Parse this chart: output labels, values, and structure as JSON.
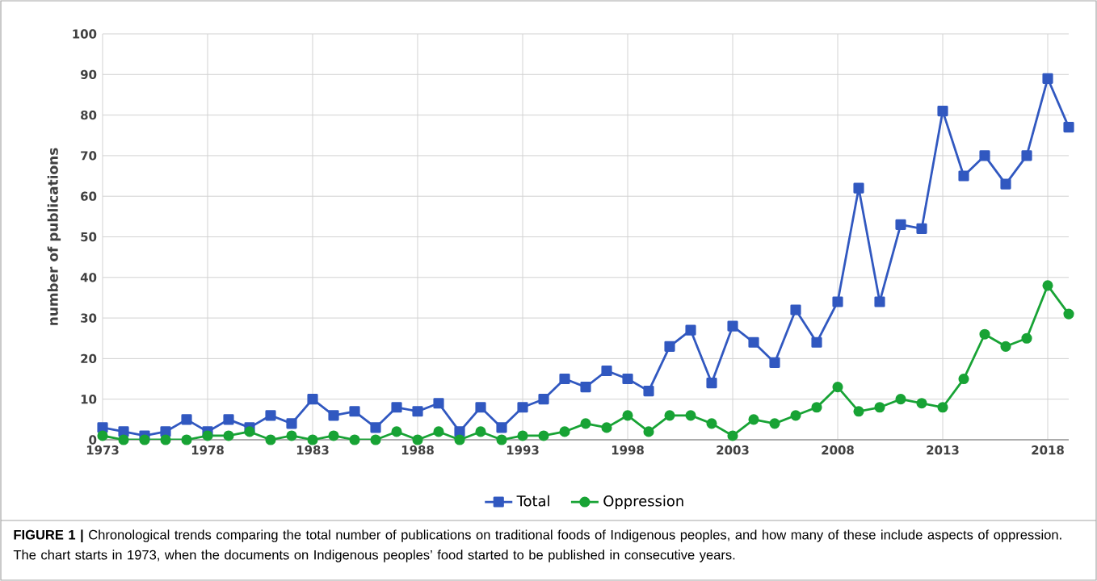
{
  "chart_data": {
    "type": "line",
    "ylabel": "number of publications",
    "x": [
      1973,
      1974,
      1975,
      1976,
      1977,
      1978,
      1979,
      1980,
      1981,
      1982,
      1983,
      1984,
      1985,
      1986,
      1987,
      1988,
      1989,
      1990,
      1991,
      1992,
      1993,
      1994,
      1995,
      1996,
      1997,
      1998,
      1999,
      2000,
      2001,
      2002,
      2003,
      2004,
      2005,
      2006,
      2007,
      2008,
      2009,
      2010,
      2011,
      2012,
      2013,
      2014,
      2015,
      2016,
      2017,
      2018,
      2019
    ],
    "series": [
      {
        "name": "Total",
        "color": "#3158c0",
        "marker": "square",
        "values": [
          3,
          2,
          1,
          2,
          5,
          2,
          5,
          3,
          6,
          4,
          10,
          6,
          7,
          3,
          8,
          7,
          9,
          2,
          8,
          3,
          8,
          10,
          15,
          13,
          17,
          15,
          12,
          23,
          27,
          14,
          28,
          24,
          19,
          32,
          24,
          34,
          62,
          34,
          53,
          52,
          81,
          65,
          70,
          63,
          70,
          89,
          77
        ]
      },
      {
        "name": "Oppression",
        "color": "#18a335",
        "marker": "circle",
        "values": [
          1,
          0,
          0,
          0,
          0,
          1,
          1,
          2,
          0,
          1,
          0,
          1,
          0,
          0,
          2,
          0,
          2,
          0,
          2,
          0,
          1,
          1,
          2,
          4,
          3,
          6,
          2,
          6,
          6,
          4,
          1,
          5,
          4,
          6,
          8,
          13,
          7,
          8,
          10,
          9,
          8,
          15,
          26,
          23,
          25,
          38,
          31
        ]
      }
    ],
    "xlim": [
      1973,
      2019
    ],
    "xticks": [
      1973,
      1978,
      1983,
      1988,
      1993,
      1998,
      2003,
      2008,
      2013,
      2018
    ],
    "ylim": [
      0,
      100
    ],
    "yticks": [
      0,
      10,
      20,
      30,
      40,
      50,
      60,
      70,
      80,
      90,
      100
    ],
    "grid": true,
    "legend": "bottom",
    "line_style": "solid",
    "annotations": [
      "**FIGURE 1 |** Chronological trends comparing the total number of publications on traditional foods of Indigenous peoples, and how many of these include aspects of oppression. The chart starts in 1973, when the documents on Indigenous peoples’ food started to be published in consecutive years."
    ]
  }
}
